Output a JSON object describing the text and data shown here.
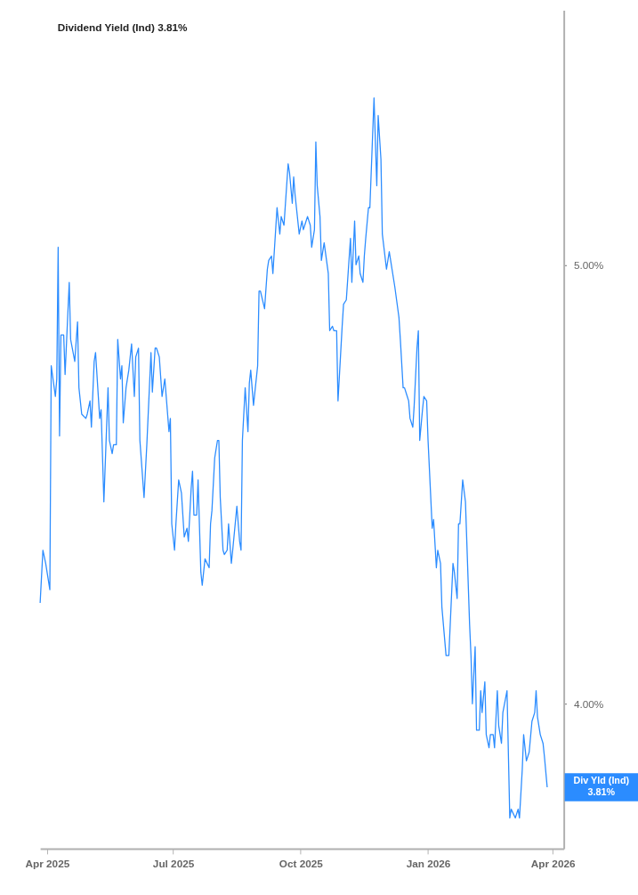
{
  "chart_data": {
    "type": "line",
    "title": "Dividend Yield (Ind) 3.81%",
    "xlim": [
      "2025-03-27",
      "2026-04-09"
    ],
    "ylim": [
      3.67,
      5.58
    ],
    "xticks": [
      {
        "value": "2025-04-01",
        "label": "Apr 2025"
      },
      {
        "value": "2025-07-01",
        "label": "Jul 2025"
      },
      {
        "value": "2025-10-01",
        "label": "Oct 2025"
      },
      {
        "value": "2026-01-01",
        "label": "Jan 2026"
      },
      {
        "value": "2026-04-01",
        "label": "Apr 2026"
      }
    ],
    "yticks": [
      {
        "value": 4,
        "label": "4.00%"
      },
      {
        "value": 5,
        "label": "5.00%"
      }
    ],
    "grid": false,
    "x": [
      "2025-03-27",
      "2025-03-29",
      "2025-03-31",
      "2025-04-03",
      "2025-04-04",
      "2025-04-07",
      "2025-04-08",
      "2025-04-09",
      "2025-04-10",
      "2025-04-11",
      "2025-04-13",
      "2025-04-14",
      "2025-04-17",
      "2025-04-18",
      "2025-04-21",
      "2025-04-23",
      "2025-04-24",
      "2025-04-26",
      "2025-04-29",
      "2025-04-30",
      "2025-05-02",
      "2025-05-03",
      "2025-05-05",
      "2025-05-06",
      "2025-05-09",
      "2025-05-10",
      "2025-05-12",
      "2025-05-15",
      "2025-05-16",
      "2025-05-18",
      "2025-05-19",
      "2025-05-21",
      "2025-05-22",
      "2025-05-24",
      "2025-05-25",
      "2025-05-26",
      "2025-05-28",
      "2025-05-30",
      "2025-06-01",
      "2025-06-03",
      "2025-06-04",
      "2025-06-06",
      "2025-06-07",
      "2025-06-10",
      "2025-06-12",
      "2025-06-15",
      "2025-06-16",
      "2025-06-18",
      "2025-06-19",
      "2025-06-21",
      "2025-06-23",
      "2025-06-25",
      "2025-06-26",
      "2025-06-28",
      "2025-06-29",
      "2025-06-30",
      "2025-07-02",
      "2025-07-03",
      "2025-07-05",
      "2025-07-07",
      "2025-07-09",
      "2025-07-11",
      "2025-07-12",
      "2025-07-14",
      "2025-07-15",
      "2025-07-16",
      "2025-07-18",
      "2025-07-19",
      "2025-07-21",
      "2025-07-22",
      "2025-07-24",
      "2025-07-27",
      "2025-07-28",
      "2025-07-29",
      "2025-07-31",
      "2025-08-02",
      "2025-08-03",
      "2025-08-04",
      "2025-08-06",
      "2025-08-07",
      "2025-08-09",
      "2025-08-10",
      "2025-08-12",
      "2025-08-13",
      "2025-08-16",
      "2025-08-18",
      "2025-08-19",
      "2025-08-20",
      "2025-08-22",
      "2025-08-24",
      "2025-08-25",
      "2025-08-26",
      "2025-08-28",
      "2025-08-31",
      "2025-09-01",
      "2025-09-02",
      "2025-09-05",
      "2025-09-07",
      "2025-09-08",
      "2025-09-10",
      "2025-09-11",
      "2025-09-14",
      "2025-09-16",
      "2025-09-17",
      "2025-09-19",
      "2025-09-22",
      "2025-09-23",
      "2025-09-25",
      "2025-09-26",
      "2025-09-27",
      "2025-09-30",
      "2025-10-02",
      "2025-10-03",
      "2025-10-05",
      "2025-10-06",
      "2025-10-08",
      "2025-10-09",
      "2025-10-11",
      "2025-10-12",
      "2025-10-13",
      "2025-10-15",
      "2025-10-16",
      "2025-10-18",
      "2025-10-21",
      "2025-10-22",
      "2025-10-24",
      "2025-10-25",
      "2025-10-27",
      "2025-10-28",
      "2025-10-31",
      "2025-11-01",
      "2025-11-03",
      "2025-11-06",
      "2025-11-07",
      "2025-11-09",
      "2025-11-10",
      "2025-11-12",
      "2025-11-13",
      "2025-11-15",
      "2025-11-16",
      "2025-11-17",
      "2025-11-19",
      "2025-11-20",
      "2025-11-23",
      "2025-11-25",
      "2025-11-26",
      "2025-11-28",
      "2025-11-29",
      "2025-12-02",
      "2025-12-04",
      "2025-12-08",
      "2025-12-11",
      "2025-12-12",
      "2025-12-14",
      "2025-12-15",
      "2025-12-17",
      "2025-12-18",
      "2025-12-19",
      "2025-12-21",
      "2025-12-22",
      "2025-12-24",
      "2025-12-25",
      "2025-12-26",
      "2025-12-28",
      "2025-12-29",
      "2025-12-31",
      "2026-01-01",
      "2026-01-04",
      "2026-01-05",
      "2026-01-07",
      "2026-01-08",
      "2026-01-10",
      "2026-01-11",
      "2026-01-14",
      "2026-01-16",
      "2026-01-19",
      "2026-01-20",
      "2026-01-22",
      "2026-01-23",
      "2026-01-24",
      "2026-01-26",
      "2026-01-28",
      "2026-01-31",
      "2026-02-01",
      "2026-02-02",
      "2026-02-04",
      "2026-02-05",
      "2026-02-07",
      "2026-02-08",
      "2026-02-09",
      "2026-02-11",
      "2026-02-12",
      "2026-02-14",
      "2026-02-15",
      "2026-02-17",
      "2026-02-18",
      "2026-02-20",
      "2026-02-21",
      "2026-02-23",
      "2026-02-24",
      "2026-02-27",
      "2026-03-01",
      "2026-03-02",
      "2026-03-05",
      "2026-03-07",
      "2026-03-08",
      "2026-03-10",
      "2026-03-11",
      "2026-03-13",
      "2026-03-15",
      "2026-03-17",
      "2026-03-19",
      "2026-03-20",
      "2026-03-21",
      "2026-03-23",
      "2026-03-25",
      "2026-03-26",
      "2026-03-28"
    ],
    "series": [
      {
        "color": "#2b8cff",
        "values": [
          4.23,
          4.35,
          4.32,
          4.26,
          4.77,
          4.7,
          4.74,
          5.04,
          4.61,
          4.84,
          4.84,
          4.75,
          4.96,
          4.83,
          4.78,
          4.87,
          4.72,
          4.66,
          4.65,
          4.66,
          4.69,
          4.63,
          4.78,
          4.8,
          4.65,
          4.67,
          4.46,
          4.72,
          4.6,
          4.57,
          4.59,
          4.59,
          4.83,
          4.74,
          4.77,
          4.64,
          4.72,
          4.76,
          4.82,
          4.7,
          4.79,
          4.81,
          4.6,
          4.47,
          4.59,
          4.8,
          4.71,
          4.81,
          4.81,
          4.79,
          4.7,
          4.74,
          4.7,
          4.62,
          4.65,
          4.41,
          4.35,
          4.41,
          4.51,
          4.48,
          4.38,
          4.4,
          4.37,
          4.49,
          4.53,
          4.43,
          4.43,
          4.51,
          4.3,
          4.27,
          4.33,
          4.31,
          4.41,
          4.44,
          4.56,
          4.6,
          4.6,
          4.47,
          4.35,
          4.34,
          4.35,
          4.41,
          4.32,
          4.35,
          4.45,
          4.37,
          4.35,
          4.6,
          4.72,
          4.62,
          4.73,
          4.76,
          4.68,
          4.77,
          4.94,
          4.94,
          4.9,
          4.99,
          5.01,
          5.02,
          4.98,
          5.13,
          5.07,
          5.11,
          5.09,
          5.23,
          5.21,
          5.14,
          5.2,
          5.16,
          5.07,
          5.1,
          5.08,
          5.1,
          5.11,
          5.09,
          5.04,
          5.08,
          5.28,
          5.18,
          5.11,
          5.01,
          5.05,
          4.98,
          4.85,
          4.86,
          4.85,
          4.85,
          4.69,
          4.86,
          4.91,
          4.92,
          5.06,
          4.96,
          5.1,
          5.0,
          5.02,
          4.98,
          4.96,
          5.02,
          5.06,
          5.13,
          5.13,
          5.38,
          5.18,
          5.34,
          5.24,
          5.07,
          4.99,
          5.03,
          4.95,
          4.88,
          4.83,
          4.72,
          4.72,
          4.7,
          4.69,
          4.65,
          4.63,
          4.68,
          4.81,
          4.85,
          4.6,
          4.67,
          4.7,
          4.69,
          4.6,
          4.4,
          4.42,
          4.31,
          4.35,
          4.32,
          4.22,
          4.11,
          4.11,
          4.32,
          4.3,
          4.24,
          4.41,
          4.41,
          4.51,
          4.46,
          4.18,
          4.11,
          4.0,
          4.13,
          3.94,
          3.94,
          4.03,
          3.98,
          4.05,
          3.93,
          3.9,
          3.93,
          3.93,
          3.9,
          4.03,
          3.95,
          3.91,
          3.98,
          4.03,
          3.74,
          3.76,
          3.74,
          3.76,
          3.74,
          3.85,
          3.93,
          3.87,
          3.89,
          3.96,
          3.98,
          4.03,
          3.97,
          3.93,
          3.91,
          3.88,
          3.81
        ]
      }
    ],
    "annotations": [
      {
        "text": "Div Yld (Ind) 3.81%",
        "x": "2026-03-28",
        "y": 3.81
      }
    ]
  }
}
